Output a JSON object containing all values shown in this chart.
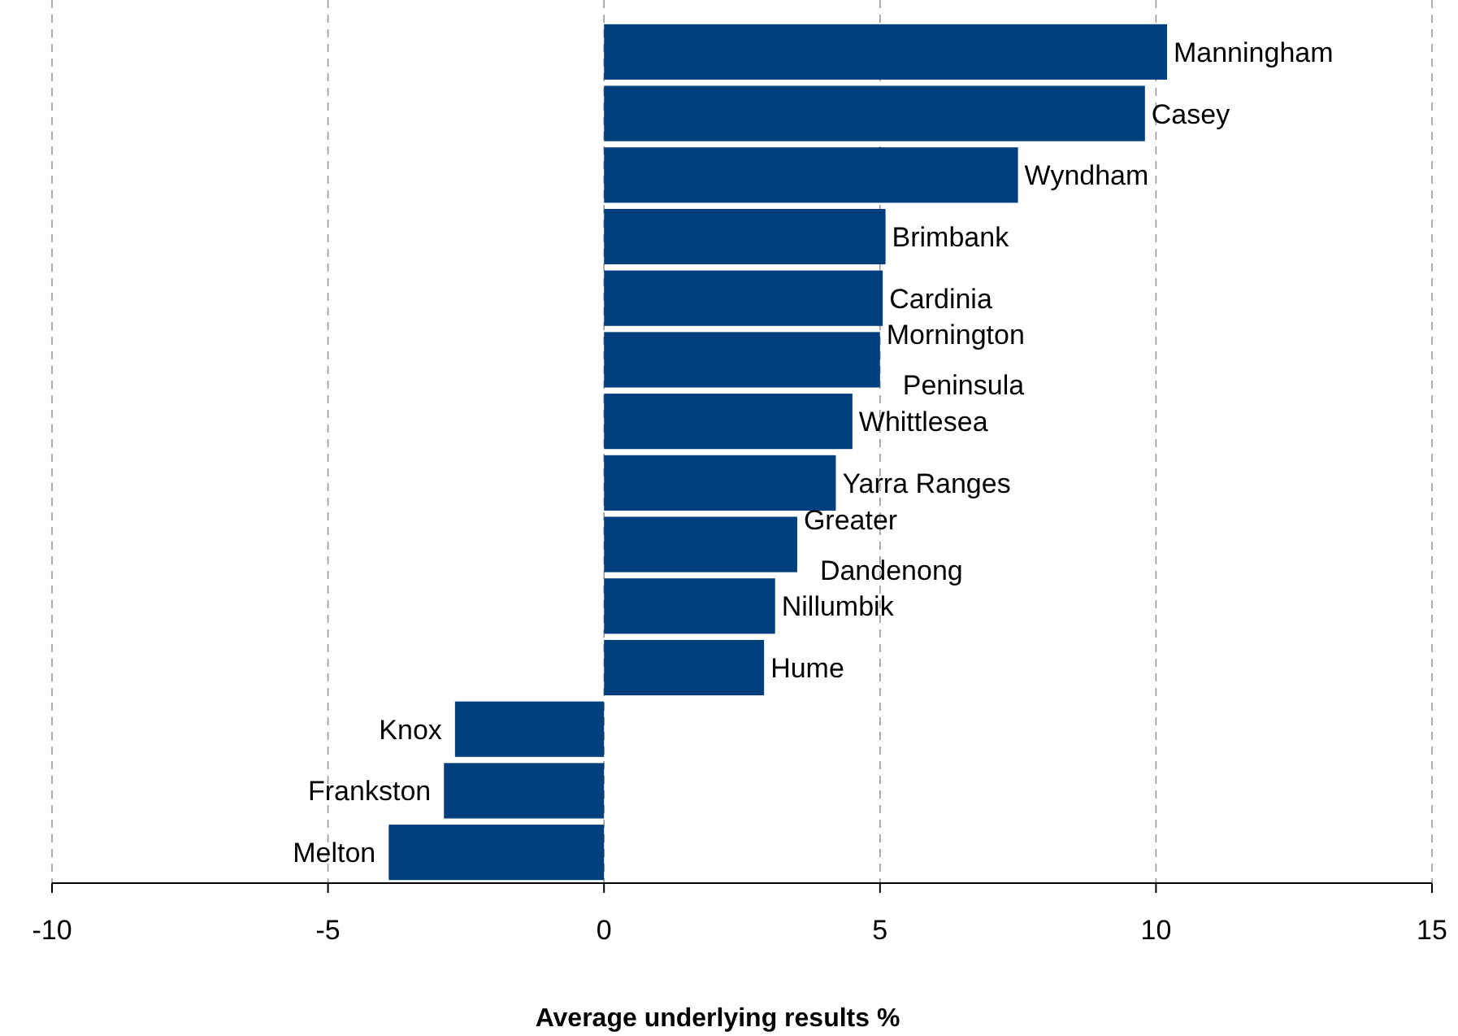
{
  "chart_data": {
    "type": "bar",
    "orientation": "horizontal",
    "xlabel": "Average underlying results %",
    "categories": [
      "Manningham",
      "Casey",
      "Wyndham",
      "Brimbank",
      "Cardinia",
      "Mornington Peninsula",
      "Whittlesea",
      "Yarra Ranges",
      "Greater Dandenong",
      "Nillumbik",
      "Hume",
      "Knox",
      "Frankston",
      "Melton"
    ],
    "values": [
      10.2,
      9.8,
      7.5,
      5.1,
      5.05,
      5.0,
      4.5,
      4.2,
      3.5,
      3.1,
      2.9,
      -2.7,
      -2.9,
      -3.9
    ],
    "color": "#003f7d",
    "xlim": [
      -10,
      15
    ],
    "xticks": [
      -10,
      -5,
      0,
      5,
      10,
      15
    ],
    "grid": "x"
  }
}
